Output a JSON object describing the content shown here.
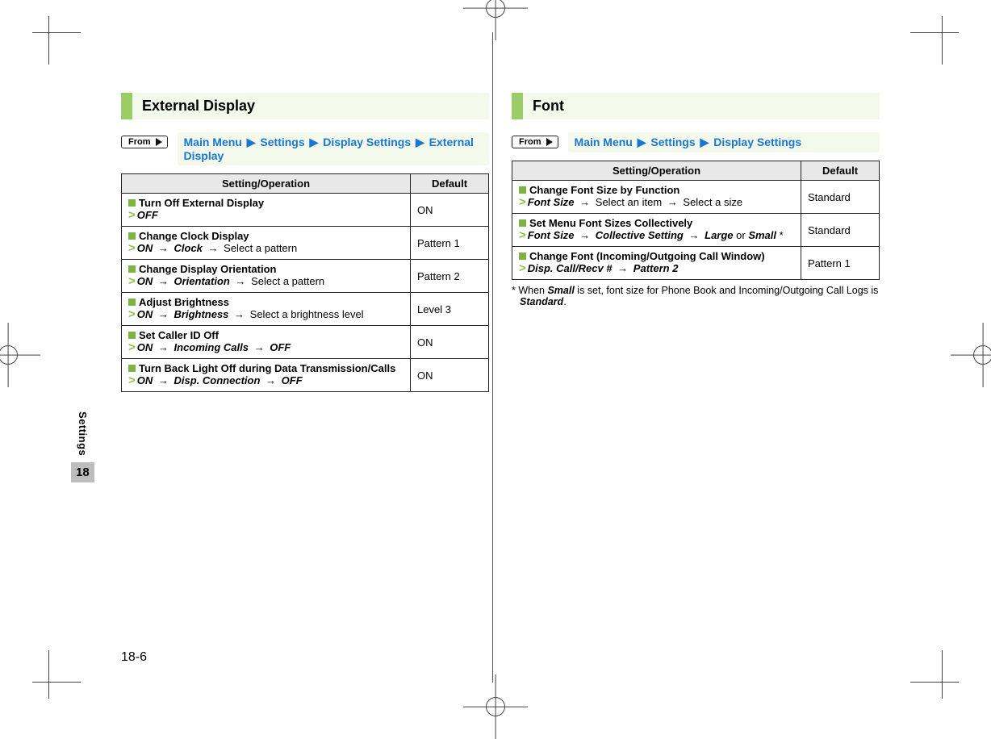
{
  "page_number": "18-6",
  "side_tab": {
    "label": "Settings",
    "chapter": "18"
  },
  "left": {
    "title": "External Display",
    "from_label": "From",
    "path": [
      "Main Menu",
      "Settings",
      "Display Settings",
      "External Display"
    ],
    "headers": {
      "setting": "Setting/Operation",
      "default": "Default"
    },
    "rows": [
      {
        "title": "Turn Off External Display",
        "steps_html": "<span class='gt'>&gt;</span><span class='bi'>OFF</span>",
        "default": "ON"
      },
      {
        "title": "Change Clock Display",
        "steps_html": "<span class='gt'>&gt;</span><span class='bi'>ON</span> <span class='arrow'>→</span> <span class='bi'>Clock</span> <span class='arrow'>→</span> Select a pattern",
        "default": "Pattern 1"
      },
      {
        "title": "Change Display Orientation",
        "steps_html": "<span class='gt'>&gt;</span><span class='bi'>ON</span> <span class='arrow'>→</span> <span class='bi'>Orientation</span> <span class='arrow'>→</span> Select a pattern",
        "default": "Pattern 2"
      },
      {
        "title": "Adjust Brightness",
        "steps_html": "<span class='gt'>&gt;</span><span class='bi'>ON</span> <span class='arrow'>→</span> <span class='bi'>Brightness</span> <span class='arrow'>→</span> Select a brightness level",
        "default": "Level 3"
      },
      {
        "title": "Set Caller ID Off",
        "steps_html": "<span class='gt'>&gt;</span><span class='bi'>ON</span> <span class='arrow'>→</span> <span class='bi'>Incoming Calls</span> <span class='arrow'>→</span> <span class='bi'>OFF</span>",
        "default": "ON"
      },
      {
        "title": "Turn Back Light Off during Data Transmission/Calls",
        "steps_html": "<span class='gt'>&gt;</span><span class='bi'>ON</span> <span class='arrow'>→</span> <span class='bi'>Disp. Connection</span> <span class='arrow'>→</span> <span class='bi'>OFF</span>",
        "default": "ON"
      }
    ]
  },
  "right": {
    "title": "Font",
    "from_label": "From",
    "path": [
      "Main Menu",
      "Settings",
      "Display Settings"
    ],
    "headers": {
      "setting": "Setting/Operation",
      "default": "Default"
    },
    "rows": [
      {
        "title": "Change Font Size by Function",
        "steps_html": "<span class='gt'>&gt;</span><span class='bi'>Font Size</span> <span class='arrow'>→</span> Select an item <span class='arrow'>→</span> Select a size",
        "default": "Standard"
      },
      {
        "title": "Set Menu Font Sizes Collectively",
        "steps_html": "<span class='gt'>&gt;</span><span class='bi'>Font Size</span> <span class='arrow'>→</span> <span class='bi'>Collective Setting</span> <span class='arrow'>→</span> <span class='bi'>Large</span> or <span class='bi'>Small</span> *",
        "default": "Standard"
      },
      {
        "title": "Change Font (Incoming/Outgoing Call Window)",
        "steps_html": "<span class='gt'>&gt;</span><span class='bi'>Disp. Call/Recv #</span> <span class='arrow'>→</span> <span class='bi'>Pattern 2</span>",
        "default": "Pattern 1"
      }
    ],
    "footnote_html": "* When <span class='bi'>Small</span> is set, font size for Phone Book and Incoming/Outgoing Call Logs is <span class='bi'>Standard</span>."
  }
}
